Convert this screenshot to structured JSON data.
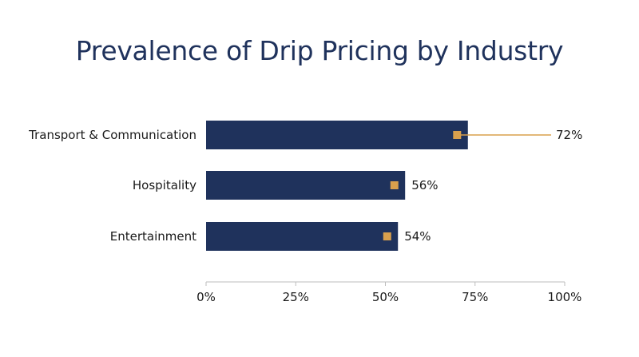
{
  "chart_data": {
    "type": "bar",
    "orientation": "horizontal",
    "title": "Prevalence of Drip Pricing by Industry",
    "categories": [
      "Transport & Communication",
      "Hospitality",
      "Entertainment"
    ],
    "values": [
      72,
      56,
      54
    ],
    "bar_values": [
      73,
      55.5,
      53.5
    ],
    "marker_values": [
      70,
      52.5,
      50.5
    ],
    "value_labels": [
      "72%",
      "56%",
      "54%"
    ],
    "xlim": [
      0,
      100
    ],
    "xticks": [
      0,
      25,
      50,
      75,
      100
    ],
    "xtick_labels": [
      "0%",
      "25%",
      "50%",
      "75%",
      "100%"
    ],
    "xlabel": "",
    "ylabel": "",
    "grid": false,
    "colors": {
      "bar": "#1f325c",
      "marker": "#d9a04d",
      "leader": "#d9a04d",
      "axis": "#bdbdbd",
      "title": "#1f325c"
    }
  }
}
